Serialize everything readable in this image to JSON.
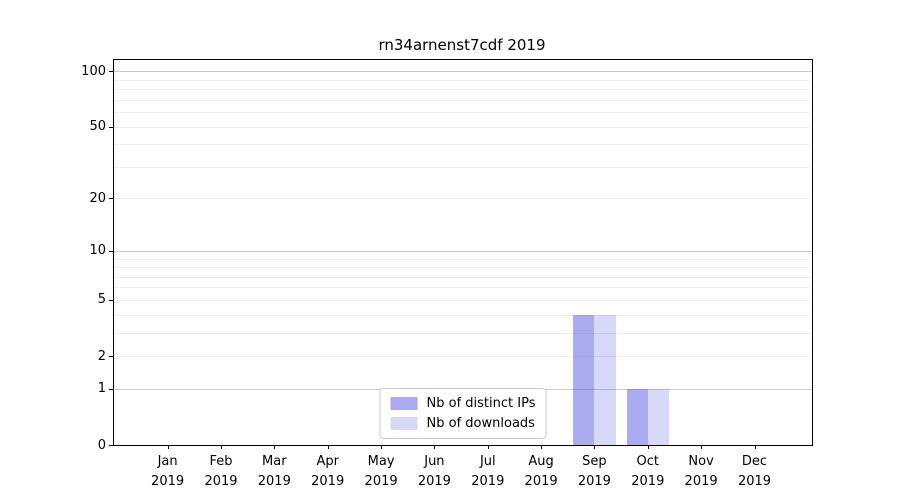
{
  "chart_data": {
    "type": "bar",
    "title": "rn34arnenst7cdf 2019",
    "year": "2019",
    "categories": [
      "Jan 2019",
      "Feb 2019",
      "Mar 2019",
      "Apr 2019",
      "May 2019",
      "Jun 2019",
      "Jul 2019",
      "Aug 2019",
      "Sep 2019",
      "Oct 2019",
      "Nov 2019",
      "Dec 2019"
    ],
    "x_tick_labels": [
      {
        "month": "Jan",
        "year": "2019"
      },
      {
        "month": "Feb",
        "year": "2019"
      },
      {
        "month": "Mar",
        "year": "2019"
      },
      {
        "month": "Apr",
        "year": "2019"
      },
      {
        "month": "May",
        "year": "2019"
      },
      {
        "month": "Jun",
        "year": "2019"
      },
      {
        "month": "Jul",
        "year": "2019"
      },
      {
        "month": "Aug",
        "year": "2019"
      },
      {
        "month": "Sep",
        "year": "2019"
      },
      {
        "month": "Oct",
        "year": "2019"
      },
      {
        "month": "Nov",
        "year": "2019"
      },
      {
        "month": "Dec",
        "year": "2019"
      }
    ],
    "series": [
      {
        "name": "Nb of distinct IPs",
        "color": "rgba(100,100,230,0.55)",
        "values": [
          0,
          0,
          0,
          0,
          0,
          0,
          0,
          0,
          4,
          1,
          0,
          0
        ]
      },
      {
        "name": "Nb of downloads",
        "color": "rgba(100,100,230,0.25)",
        "values": [
          0,
          0,
          0,
          0,
          0,
          0,
          0,
          0,
          4,
          1,
          0,
          0
        ]
      }
    ],
    "y_axis": {
      "scale": "log1p",
      "tick_values": [
        0,
        1,
        2,
        5,
        10,
        20,
        50,
        100
      ],
      "tick_labels": [
        "0",
        "1",
        "2",
        "5",
        "10",
        "20",
        "50",
        "100"
      ],
      "major_grid_values": [
        1,
        10,
        100
      ],
      "minor_grid_values": [
        2,
        3,
        4,
        5,
        6,
        7,
        8,
        9,
        20,
        30,
        40,
        50,
        60,
        70,
        80,
        90
      ],
      "ylim": [
        0,
        112
      ]
    },
    "legend": {
      "position": "lower center",
      "entries": [
        "Nb of distinct IPs",
        "Nb of downloads"
      ]
    },
    "grid": true,
    "colors": {
      "major_grid": "#c9c9c9",
      "minor_grid": "#ededed",
      "axis": "#000000",
      "background": "#ffffff",
      "bar_distinct_ips_on_white": "#aaaaef",
      "bar_downloads_on_white": "#d9d9f4"
    }
  }
}
